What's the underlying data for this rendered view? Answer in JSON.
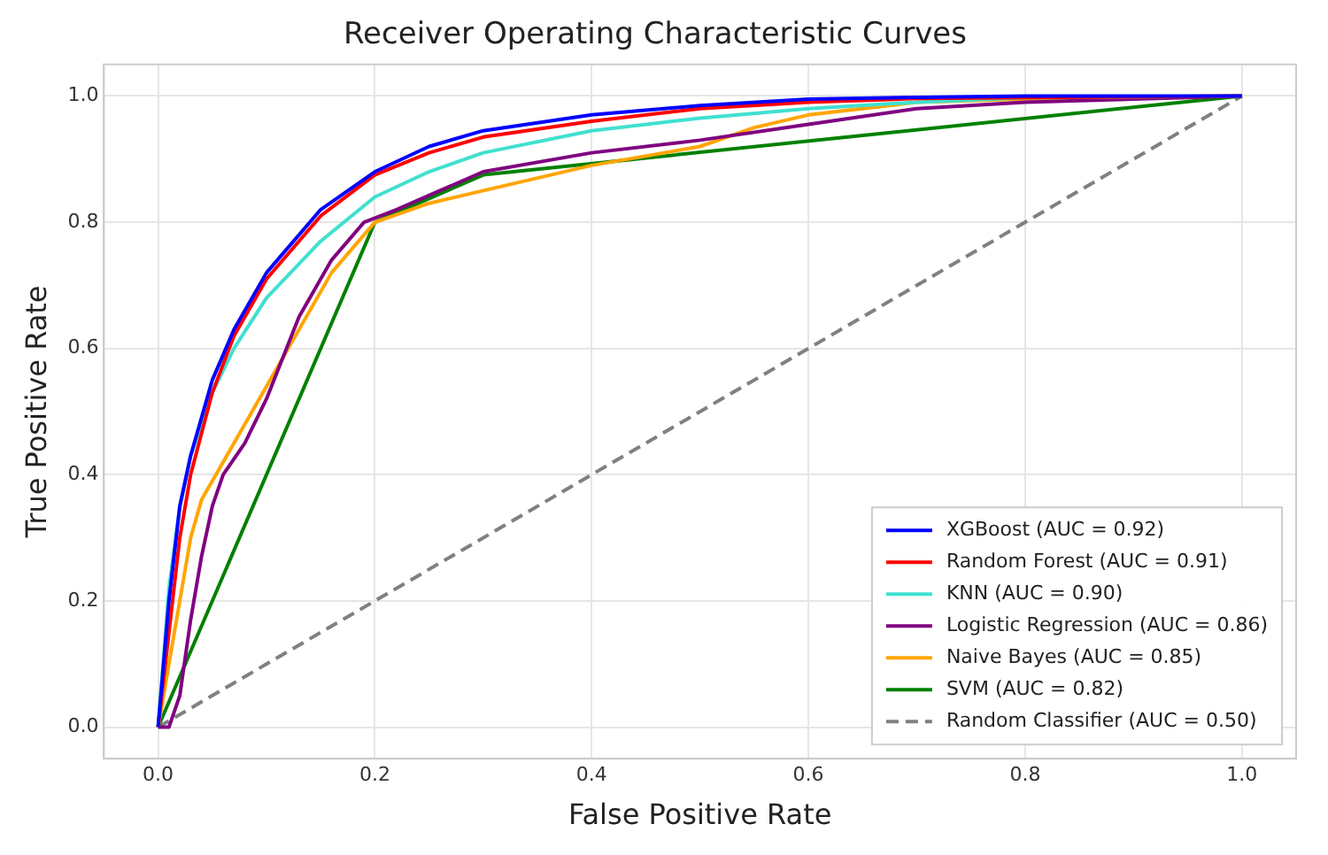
{
  "chart_data": {
    "type": "line",
    "title": "Receiver Operating Characteristic Curves",
    "xlabel": "False Positive Rate",
    "ylabel": "True Positive Rate",
    "xlim": [
      -0.05,
      1.05
    ],
    "ylim": [
      -0.05,
      1.05
    ],
    "xticks": [
      {
        "value": 0,
        "label": "0.0"
      },
      0.2,
      0.4,
      0.6,
      0.8,
      {
        "value": 1,
        "label": "1.0"
      }
    ],
    "yticks": [
      {
        "value": 0,
        "label": "0.0"
      },
      0.2,
      0.4,
      0.6,
      0.8,
      {
        "value": 1,
        "label": "1.0"
      }
    ],
    "grid": true,
    "legend": "bottom right",
    "marker": "none",
    "series": [
      {
        "name": "XGBoost (AUC = 0.92)",
        "color": "#0000ff",
        "x": [
          0,
          0.01,
          0.02,
          0.03,
          0.05,
          0.07,
          0.1,
          0.15,
          0.2,
          0.25,
          0.3,
          0.4,
          0.5,
          0.6,
          0.7,
          0.8,
          1
        ],
        "values": [
          0,
          0.2,
          0.35,
          0.43,
          0.55,
          0.63,
          0.72,
          0.82,
          0.88,
          0.92,
          0.945,
          0.97,
          0.985,
          0.995,
          0.998,
          1,
          1
        ]
      },
      {
        "name": "Random Forest (AUC = 0.91)",
        "color": "#ff0000",
        "x": [
          0,
          0.01,
          0.02,
          0.03,
          0.05,
          0.07,
          0.1,
          0.15,
          0.2,
          0.25,
          0.3,
          0.4,
          0.5,
          0.6,
          0.7,
          1
        ],
        "values": [
          0,
          0.15,
          0.3,
          0.4,
          0.53,
          0.62,
          0.71,
          0.81,
          0.875,
          0.91,
          0.935,
          0.96,
          0.98,
          0.99,
          0.996,
          1
        ]
      },
      {
        "name": "KNN (AUC = 0.90)",
        "color": "#40e0d0",
        "x": [
          0,
          0.01,
          0.02,
          0.03,
          0.05,
          0.07,
          0.1,
          0.15,
          0.2,
          0.25,
          0.3,
          0.4,
          0.5,
          0.6,
          0.7,
          0.8,
          1
        ],
        "values": [
          0,
          0.22,
          0.35,
          0.43,
          0.53,
          0.6,
          0.68,
          0.77,
          0.84,
          0.88,
          0.91,
          0.945,
          0.965,
          0.98,
          0.99,
          0.997,
          1
        ]
      },
      {
        "name": "Logistic Regression (AUC = 0.86)",
        "color": "#800080",
        "x": [
          0,
          0.01,
          0.02,
          0.03,
          0.04,
          0.05,
          0.06,
          0.08,
          0.1,
          0.13,
          0.16,
          0.19,
          0.22,
          0.26,
          0.3,
          0.4,
          0.5,
          0.6,
          0.7,
          0.8,
          1
        ],
        "values": [
          0,
          0,
          0.05,
          0.17,
          0.27,
          0.35,
          0.4,
          0.45,
          0.52,
          0.65,
          0.74,
          0.8,
          0.82,
          0.85,
          0.88,
          0.91,
          0.93,
          0.955,
          0.98,
          0.99,
          1
        ]
      },
      {
        "name": "Naive Bayes (AUC = 0.85)",
        "color": "#ffa500",
        "x": [
          0,
          0.01,
          0.02,
          0.03,
          0.04,
          0.06,
          0.08,
          0.12,
          0.16,
          0.2,
          0.25,
          0.3,
          0.4,
          0.5,
          0.55,
          0.6,
          0.7,
          0.8,
          1
        ],
        "values": [
          0,
          0.1,
          0.2,
          0.3,
          0.36,
          0.42,
          0.48,
          0.6,
          0.72,
          0.8,
          0.83,
          0.85,
          0.89,
          0.92,
          0.95,
          0.97,
          0.99,
          0.995,
          1
        ]
      },
      {
        "name": "SVM (AUC = 0.82)",
        "color": "#008000",
        "x": [
          0,
          0.2,
          0.3,
          1
        ],
        "values": [
          0,
          0.8,
          0.875,
          1
        ]
      },
      {
        "name": "Random Classifier (AUC = 0.50)",
        "color": "#808080",
        "line_style": "dashed",
        "x": [
          0,
          1
        ],
        "values": [
          0,
          1
        ]
      }
    ]
  }
}
